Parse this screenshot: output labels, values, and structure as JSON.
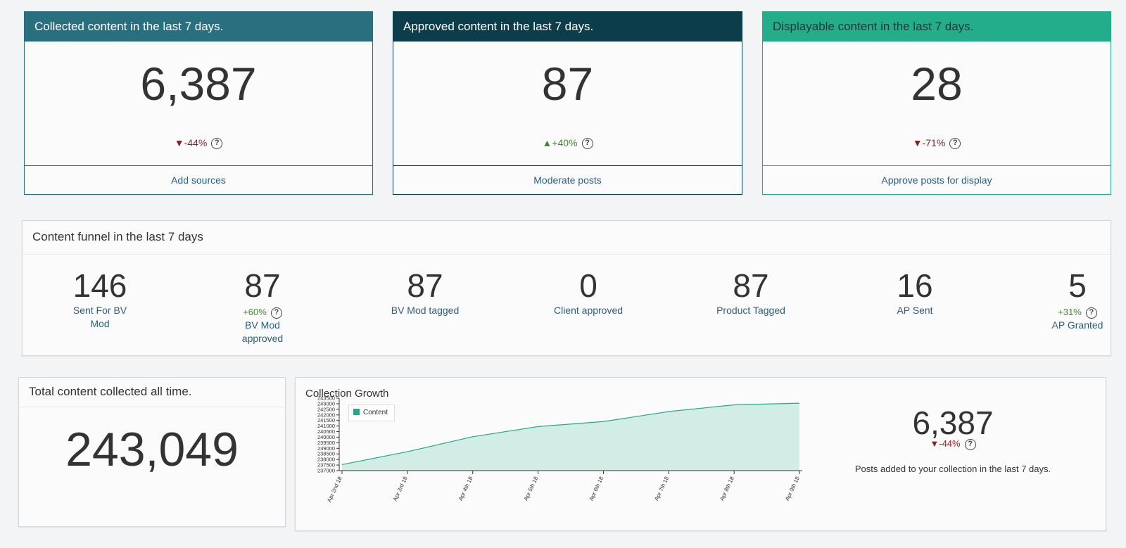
{
  "cards": [
    {
      "title": "Collected content in the last 7 days.",
      "value": "6,387",
      "delta_arrow": "▼",
      "delta": "-44%",
      "help": "?",
      "action": "Add sources",
      "header_color": "#286f80",
      "header_text": "#ffffff",
      "border_color": "#2f6b7d"
    },
    {
      "title": "Approved content in the last 7 days.",
      "value": "87",
      "delta_arrow": "▲",
      "delta": "+40%",
      "help": "?",
      "action": "Moderate posts",
      "header_color": "#0b3d4b",
      "header_text": "#ffffff",
      "border_color": "#0b3d4b"
    },
    {
      "title": "Displayable content in the last 7 days.",
      "value": "28",
      "delta_arrow": "▼",
      "delta": "-71%",
      "help": "?",
      "action": "Approve posts for display",
      "header_color": "#24ad8a",
      "header_text": "#1e3a36",
      "border_color": "#24ad8a"
    }
  ],
  "funnel": {
    "title": "Content funnel in the last 7 days",
    "items": [
      {
        "value": "146",
        "label": "Sent For BV Mod",
        "delta": ""
      },
      {
        "value": "87",
        "label": "BV Mod approved",
        "delta": "+60%"
      },
      {
        "value": "87",
        "label": "BV Mod tagged",
        "delta": ""
      },
      {
        "value": "0",
        "label": "Client approved",
        "delta": ""
      },
      {
        "value": "87",
        "label": "Product Tagged",
        "delta": ""
      },
      {
        "value": "16",
        "label": "AP Sent",
        "delta": ""
      },
      {
        "value": "5",
        "label": "AP Granted",
        "delta": "+31%"
      }
    ],
    "help": "?"
  },
  "total": {
    "title": "Total content collected all time.",
    "value": "243,049"
  },
  "growth": {
    "title": "Collection Growth",
    "legend": "Content",
    "side_value": "6,387",
    "side_delta_arrow": "▼",
    "side_delta": "-44%",
    "side_caption": "Posts added to your collection in the last 7 days.",
    "help": "?"
  },
  "chart_data": {
    "type": "area",
    "title": "Collection Growth",
    "series": [
      {
        "name": "Content",
        "values": [
          237540,
          238700,
          240040,
          240950,
          241400,
          242300,
          242900,
          243049
        ]
      }
    ],
    "categories": [
      "Apr 2nd 18",
      "Apr 3rd 18",
      "Apr 4th 18",
      "Apr 5th 18",
      "Apr 6th 18",
      "Apr 7th 18",
      "Apr 8th 18",
      "Apr 9th 18"
    ],
    "yticks": [
      237000,
      237500,
      238000,
      238500,
      239000,
      239500,
      240000,
      240500,
      241000,
      241500,
      242000,
      242500,
      243000,
      243500
    ],
    "ylim": [
      237000,
      243500
    ],
    "legend_position": "top-left",
    "grid": false,
    "fill_color": "#d2ede6",
    "line_color": "#24a98a"
  }
}
